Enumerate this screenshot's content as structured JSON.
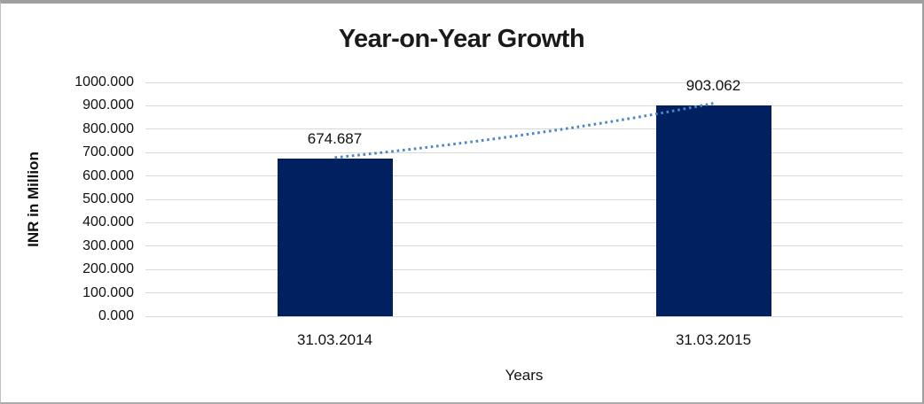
{
  "chart_data": {
    "type": "bar",
    "title": "Year-on-Year Growth",
    "xlabel": "Years",
    "ylabel": "INR in Million",
    "categories": [
      "31.03.2014",
      "31.03.2015"
    ],
    "values": [
      674.687,
      903.062
    ],
    "data_labels": [
      "674.687",
      "903.062"
    ],
    "ylim": [
      0,
      1000
    ],
    "ytick_step": 100,
    "yticks": [
      "1000.000",
      "900.000",
      "800.000",
      "700.000",
      "600.000",
      "500.000",
      "400.000",
      "300.000",
      "200.000",
      "100.000",
      "0.000"
    ],
    "grid": true,
    "legend": "none",
    "bar_color": "#002060",
    "gridline_color": "#d9d9d9",
    "trendline": {
      "style": "dotted",
      "color": "#4a86c8",
      "connects": [
        674.687,
        903.062
      ]
    }
  }
}
